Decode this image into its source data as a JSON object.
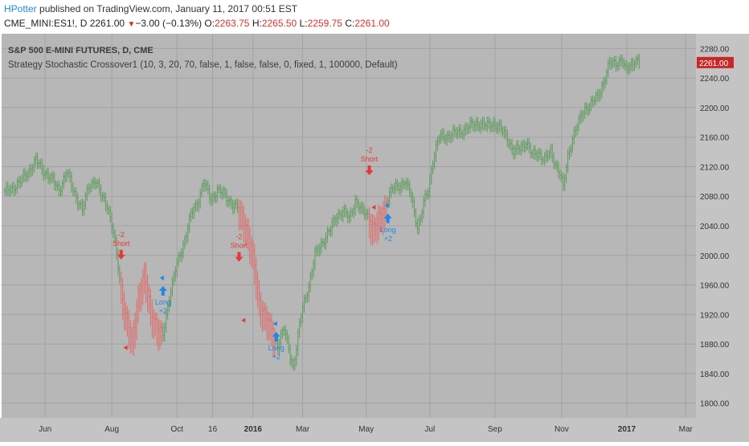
{
  "header": {
    "user": "HPotter",
    "published": " published on TradingView.com, January 11, 2017 00:51 EST",
    "symbol": "CME_MINI:ES1!, D",
    "last": "2261.00",
    "change": "−3.00 (−0.13%)",
    "o_label": "O:",
    "o_value": "2263.75",
    "h_label": "H:",
    "h_value": "2265.50",
    "l_label": "L:",
    "l_value": "2259.75",
    "c_label": "C:",
    "c_value": "2261.00"
  },
  "colors": {
    "background": "#b7b7b7",
    "grid": "#a3a3a3",
    "up": "#5d9c5d",
    "down": "#e06a6a",
    "long": "#1e88e5",
    "short": "#e53935",
    "price_label": "#c62828"
  },
  "chart_data": {
    "type": "bar",
    "title": "S&P 500 E-MINI FUTURES, D, CME",
    "subtitle": "Strategy Stochastic Crossover1 (10, 3, 20, 70, false, 1, false, false, 0, fixed, 1, 100000, Default)",
    "xlabel": "",
    "ylabel": "",
    "ylim": [
      1780,
      2300
    ],
    "y_ticks": [
      1800,
      1840,
      1880,
      1920,
      1960,
      2000,
      2040,
      2080,
      2120,
      2160,
      2200,
      2240,
      2280
    ],
    "y_tick_labels": [
      "1800.00",
      "1840.00",
      "1880.00",
      "1920.00",
      "1960.00",
      "2000.00",
      "2040.00",
      "2080.00",
      "2120.00",
      "2160.00",
      "2200.00",
      "2240.00",
      "2280.00"
    ],
    "x_ticks": [
      {
        "label": "Jun",
        "bar": 26,
        "bold": false
      },
      {
        "label": "Aug",
        "bar": 69,
        "bold": false
      },
      {
        "label": "Oct",
        "bar": 111,
        "bold": false
      },
      {
        "label": "16",
        "bar": 134,
        "bold": false
      },
      {
        "label": "2016",
        "bar": 160,
        "bold": true
      },
      {
        "label": "Mar",
        "bar": 192,
        "bold": false
      },
      {
        "label": "May",
        "bar": 233,
        "bold": false
      },
      {
        "label": "Jul",
        "bar": 274,
        "bold": false
      },
      {
        "label": "Sep",
        "bar": 316,
        "bold": false
      },
      {
        "label": "Nov",
        "bar": 359,
        "bold": false
      },
      {
        "label": "2017",
        "bar": 401,
        "bold": true
      },
      {
        "label": "Mar",
        "bar": 439,
        "bold": false
      }
    ],
    "last_price": 2261.0,
    "last_price_label": "2261.00",
    "key_closes": [
      [
        0,
        2085
      ],
      [
        10,
        2100
      ],
      [
        20,
        2128
      ],
      [
        28,
        2108
      ],
      [
        35,
        2090
      ],
      [
        40,
        2112
      ],
      [
        46,
        2080
      ],
      [
        50,
        2060
      ],
      [
        54,
        2095
      ],
      [
        58,
        2102
      ],
      [
        62,
        2082
      ],
      [
        66,
        2070
      ],
      [
        70,
        2030
      ],
      [
        74,
        1970
      ],
      [
        78,
        1920
      ],
      [
        82,
        1885
      ],
      [
        86,
        1950
      ],
      [
        90,
        1975
      ],
      [
        94,
        1930
      ],
      [
        98,
        1905
      ],
      [
        102,
        1892
      ],
      [
        106,
        1945
      ],
      [
        110,
        1980
      ],
      [
        115,
        2015
      ],
      [
        120,
        2055
      ],
      [
        124,
        2070
      ],
      [
        128,
        2100
      ],
      [
        133,
        2075
      ],
      [
        137,
        2090
      ],
      [
        142,
        2080
      ],
      [
        147,
        2070
      ],
      [
        152,
        2060
      ],
      [
        156,
        2040
      ],
      [
        158,
        2020
      ],
      [
        160,
        2000
      ],
      [
        164,
        1940
      ],
      [
        168,
        1920
      ],
      [
        172,
        1900
      ],
      [
        176,
        1880
      ],
      [
        180,
        1900
      ],
      [
        184,
        1865
      ],
      [
        186,
        1850
      ],
      [
        188,
        1875
      ],
      [
        190,
        1905
      ],
      [
        192,
        1930
      ],
      [
        196,
        1960
      ],
      [
        200,
        2000
      ],
      [
        205,
        2020
      ],
      [
        210,
        2035
      ],
      [
        214,
        2055
      ],
      [
        218,
        2060
      ],
      [
        222,
        2050
      ],
      [
        226,
        2075
      ],
      [
        230,
        2060
      ],
      [
        234,
        2055
      ],
      [
        238,
        2040
      ],
      [
        242,
        2055
      ],
      [
        246,
        2075
      ],
      [
        250,
        2090
      ],
      [
        254,
        2095
      ],
      [
        258,
        2100
      ],
      [
        262,
        2080
      ],
      [
        264,
        2060
      ],
      [
        266,
        2040
      ],
      [
        268,
        2050
      ],
      [
        270,
        2070
      ],
      [
        273,
        2090
      ],
      [
        276,
        2130
      ],
      [
        280,
        2160
      ],
      [
        290,
        2165
      ],
      [
        300,
        2175
      ],
      [
        305,
        2180
      ],
      [
        310,
        2175
      ],
      [
        315,
        2180
      ],
      [
        320,
        2170
      ],
      [
        324,
        2160
      ],
      [
        328,
        2140
      ],
      [
        332,
        2145
      ],
      [
        336,
        2155
      ],
      [
        340,
        2135
      ],
      [
        344,
        2140
      ],
      [
        348,
        2130
      ],
      [
        352,
        2140
      ],
      [
        355,
        2125
      ],
      [
        358,
        2110
      ],
      [
        360,
        2090
      ],
      [
        361,
        2105
      ],
      [
        363,
        2135
      ],
      [
        366,
        2160
      ],
      [
        370,
        2180
      ],
      [
        374,
        2200
      ],
      [
        378,
        2205
      ],
      [
        382,
        2215
      ],
      [
        386,
        2235
      ],
      [
        390,
        2260
      ],
      [
        394,
        2262
      ],
      [
        398,
        2265
      ],
      [
        400,
        2250
      ],
      [
        402,
        2255
      ],
      [
        406,
        2265
      ],
      [
        409,
        2261
      ]
    ],
    "signals": [
      {
        "type": "short",
        "bar": 75,
        "price": 2001,
        "label": "Short",
        "qty": "-2"
      },
      {
        "type": "exit_short",
        "bar": 77,
        "price": 1875
      },
      {
        "type": "long",
        "bar": 102,
        "price": 1952,
        "label": "Long",
        "qty": "+2"
      },
      {
        "type": "short",
        "bar": 151,
        "price": 1998,
        "label": "Short",
        "qty": "-2"
      },
      {
        "type": "exit_short",
        "bar": 153,
        "price": 1912
      },
      {
        "type": "long",
        "bar": 175,
        "price": 1890,
        "label": "Long",
        "qty": "+2"
      },
      {
        "type": "short",
        "bar": 235,
        "price": 2115,
        "label": "Short",
        "qty": "-2"
      },
      {
        "type": "exit_short",
        "bar": 237,
        "price": 2065
      },
      {
        "type": "long",
        "bar": 247,
        "price": 2050,
        "label": "Long",
        "qty": "+2"
      }
    ]
  }
}
